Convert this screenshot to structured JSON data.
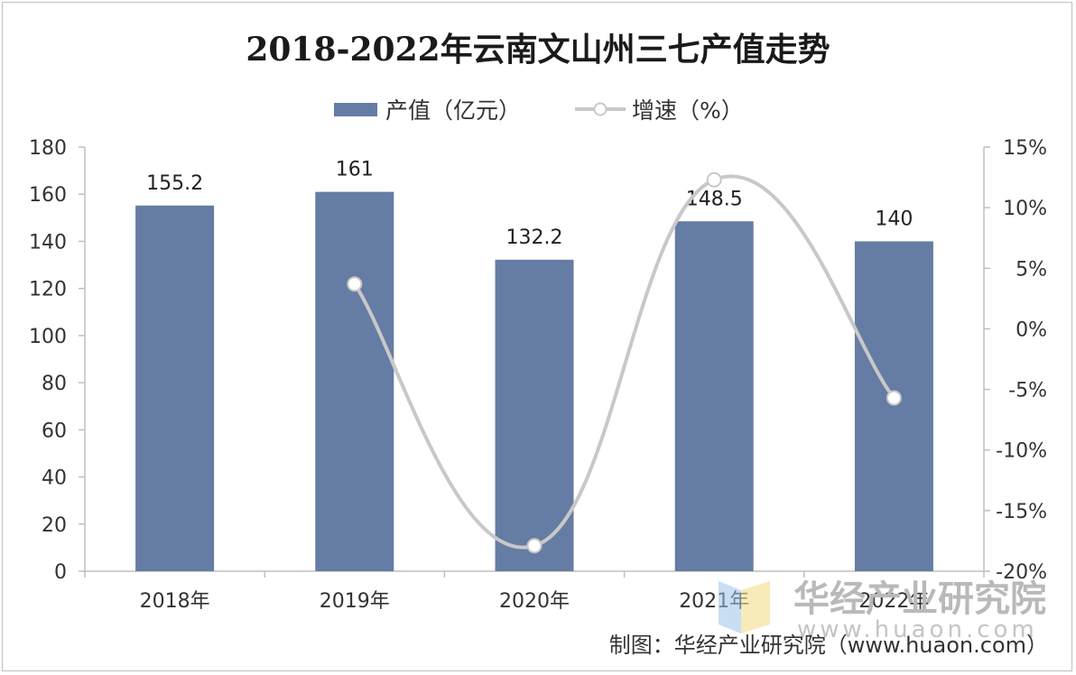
{
  "chart_data": {
    "type": "bar",
    "title": "2018-2022年云南文山州三七产值走势",
    "categories": [
      "2018年",
      "2019年",
      "2020年",
      "2021年",
      "2022年"
    ],
    "series": [
      {
        "name": "产值（亿元）",
        "type": "bar",
        "axis": "left",
        "values": [
          155.2,
          161,
          132.2,
          148.5,
          140
        ],
        "data_labels": [
          "155.2",
          "161",
          "132.2",
          "148.5",
          "140"
        ],
        "color": "#657ca4"
      },
      {
        "name": "增速（%）",
        "type": "line",
        "axis": "right",
        "values": [
          null,
          3.7,
          -17.9,
          12.3,
          -5.7
        ],
        "color": "#c8c8c8",
        "smooth": true,
        "marker": "circle-hollow"
      }
    ],
    "y_left": {
      "ylim": [
        0,
        180
      ],
      "ticks": [
        0,
        20,
        40,
        60,
        80,
        100,
        120,
        140,
        160,
        180
      ],
      "tick_labels": [
        "0",
        "20",
        "40",
        "60",
        "80",
        "100",
        "120",
        "140",
        "160",
        "180"
      ]
    },
    "y_right": {
      "ylim": [
        -20,
        15
      ],
      "ticks": [
        -20,
        -15,
        -10,
        -5,
        0,
        5,
        10,
        15
      ],
      "tick_labels": [
        "-20%",
        "-15%",
        "-10%",
        "-5%",
        "0%",
        "5%",
        "10%",
        "15%"
      ]
    },
    "grid": false,
    "legend": {
      "position": "top-center",
      "entries": [
        "产值（亿元）",
        "增速（%）"
      ]
    },
    "source": "制图：华经产业研究院（www.huaon.com）"
  },
  "watermark": {
    "text": "华经产业研究院",
    "url": "www.huaon.com"
  }
}
